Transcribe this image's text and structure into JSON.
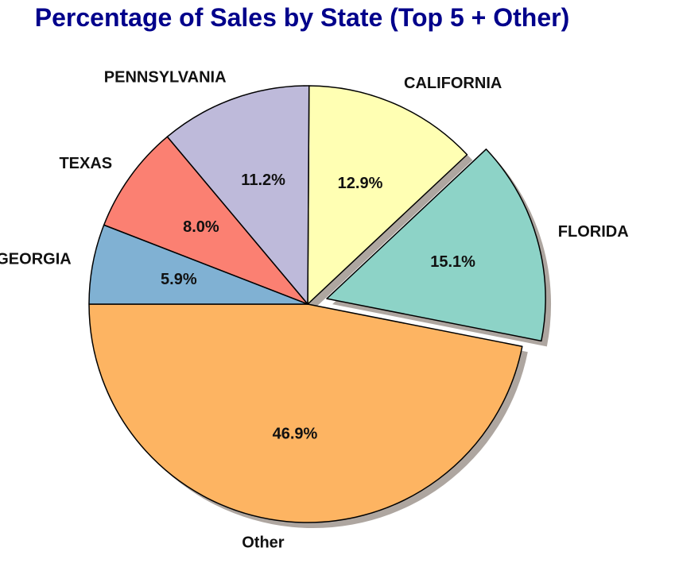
{
  "chart_data": {
    "type": "pie",
    "title": "Percentage of Sales by State (Top 5 + Other)",
    "start_angle_deg": 180,
    "direction": "counterclockwise",
    "slices": [
      {
        "label": "Other",
        "value": 46.9,
        "pct_label": "46.9%",
        "color": "#fdb462",
        "explode": 0
      },
      {
        "label": "FLORIDA",
        "value": 15.1,
        "pct_label": "15.1%",
        "color": "#8dd3c7",
        "explode": 0.1
      },
      {
        "label": "CALIFORNIA",
        "value": 12.9,
        "pct_label": "12.9%",
        "color": "#ffffb3",
        "explode": 0
      },
      {
        "label": "PENNSYLVANIA",
        "value": 11.2,
        "pct_label": "11.2%",
        "color": "#bebada",
        "explode": 0
      },
      {
        "label": "TEXAS",
        "value": 8.0,
        "pct_label": "8.0%",
        "color": "#fb8072",
        "explode": 0
      },
      {
        "label": "GEORGIA",
        "value": 5.9,
        "pct_label": "5.9%",
        "color": "#80b1d3",
        "explode": 0
      }
    ],
    "shadow": true,
    "edge_color": "#000000"
  }
}
